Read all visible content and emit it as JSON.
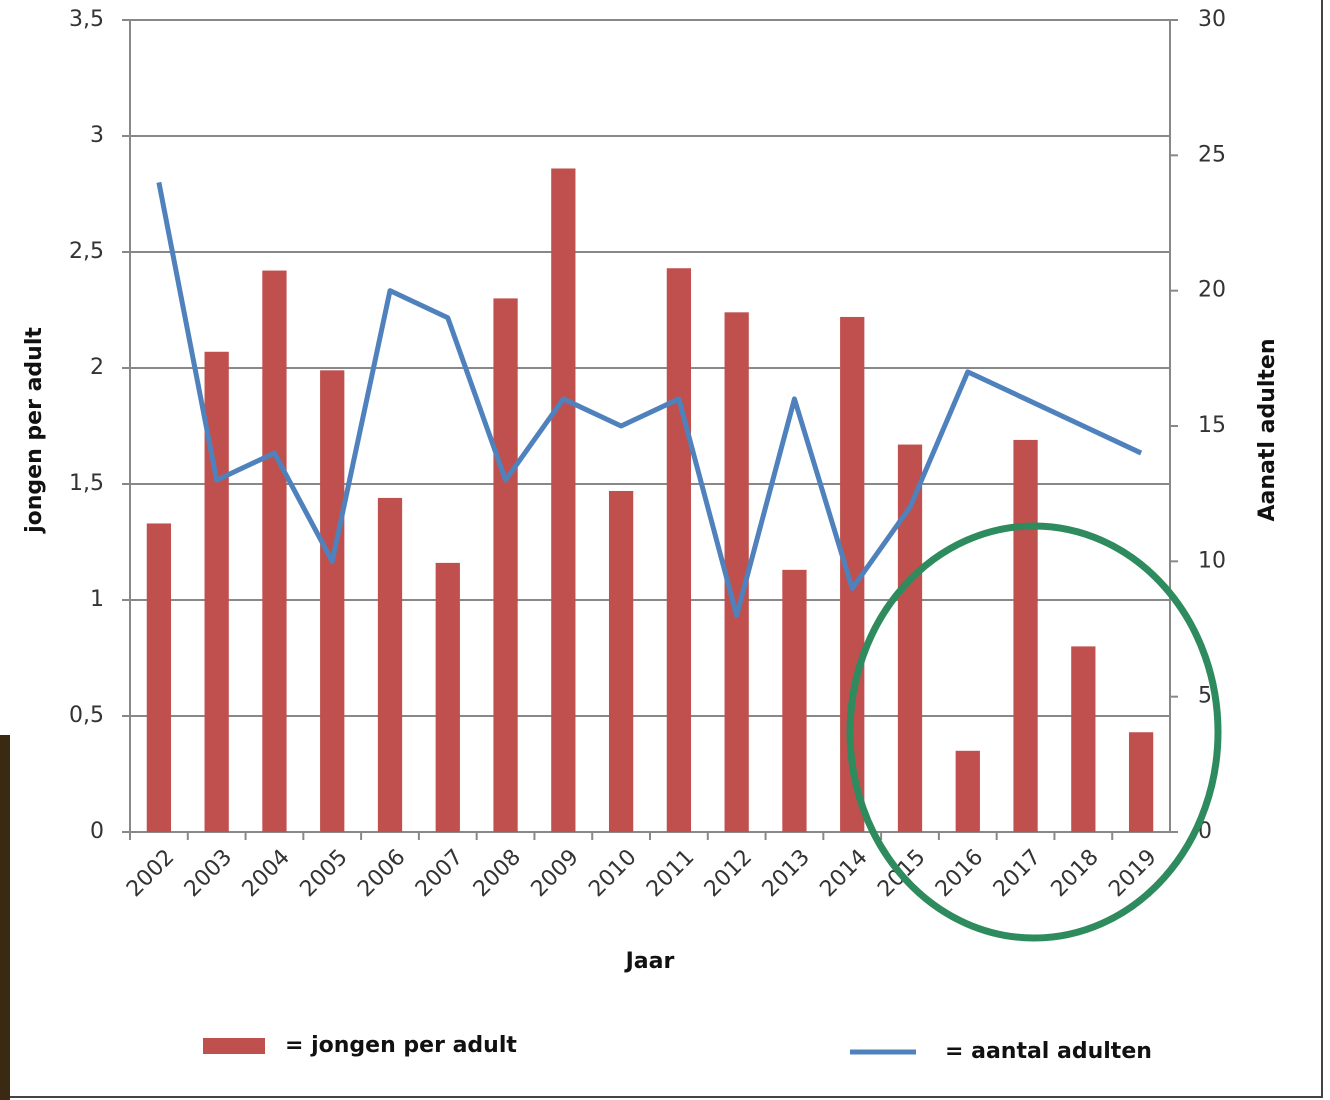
{
  "chart_data": {
    "type": "bar",
    "x_label": "Jaar",
    "y_label": "jongen per adult",
    "y2_label": "Aanatl adulten",
    "categories": [
      "2002",
      "2003",
      "2004",
      "2005",
      "2006",
      "2007",
      "2008",
      "2009",
      "2010",
      "2011",
      "2012",
      "2013",
      "2014",
      "2015",
      "2016",
      "2017",
      "2018",
      "2019"
    ],
    "series": [
      {
        "name": "= jongen per adult",
        "type": "bar",
        "color": "#c0504d",
        "values": [
          1.33,
          2.07,
          2.42,
          1.99,
          1.44,
          1.16,
          2.3,
          2.86,
          1.47,
          2.43,
          2.24,
          1.13,
          2.22,
          1.67,
          0.35,
          1.69,
          0.8,
          0.43
        ]
      },
      {
        "name": "= aantal adulten",
        "type": "line",
        "axis": "y2",
        "color": "#4f81bd",
        "values": [
          24,
          13,
          14,
          10,
          20,
          19,
          13,
          16,
          15,
          16,
          8,
          16,
          9,
          12,
          17,
          16,
          15,
          14
        ]
      }
    ],
    "ylim": [
      0,
      3.5
    ],
    "yticks": [
      0,
      {
        "value": 0.5,
        "label": "0,5"
      },
      1,
      {
        "value": 1.5,
        "label": "1,5"
      },
      2,
      {
        "value": 2.5,
        "label": "2,5"
      },
      3,
      {
        "value": 3.5,
        "label": "3,5"
      }
    ],
    "y2lim": [
      0,
      30
    ],
    "y2ticks": [
      0,
      5,
      10,
      15,
      20,
      25,
      30
    ],
    "grid": true
  }
}
